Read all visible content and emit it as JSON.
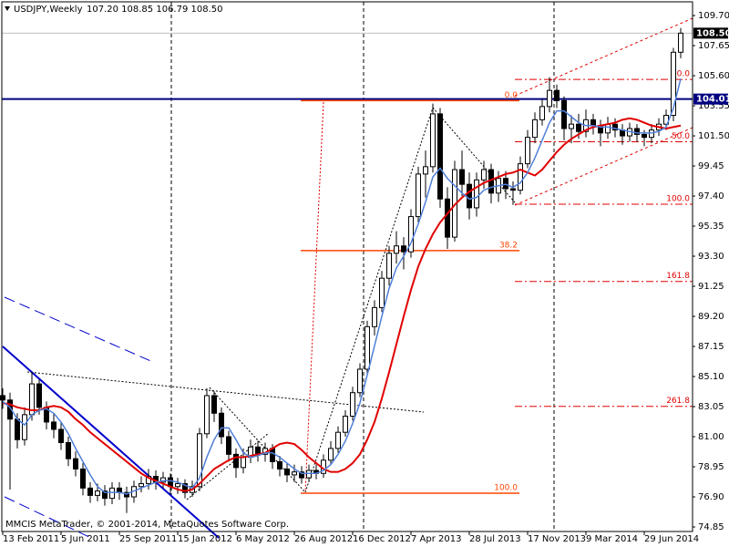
{
  "chart_data": {
    "type": "candlestick",
    "title": "USDJPY,Weekly",
    "subtitle": "107.20 108.85 106.79 108.50",
    "footer": "MMCIS MetaTrader, © 2001-2014, MetaQuotes Software Corp.",
    "categories": [
      "13 Feb 2011",
      null,
      null,
      null,
      null,
      null,
      null,
      null,
      "5 Jun 2011",
      null,
      null,
      null,
      null,
      null,
      null,
      null,
      "25 Sep 2011",
      null,
      null,
      null,
      null,
      null,
      null,
      null,
      "15 Jan 2012",
      null,
      null,
      null,
      null,
      null,
      null,
      null,
      "6 May 2012",
      null,
      null,
      null,
      null,
      null,
      null,
      null,
      "26 Aug 2012",
      null,
      null,
      null,
      null,
      null,
      null,
      null,
      "16 Dec 2012",
      null,
      null,
      null,
      null,
      null,
      null,
      null,
      "7 Apr 2013",
      null,
      null,
      null,
      null,
      null,
      null,
      null,
      "28 Jul 2013",
      null,
      null,
      null,
      null,
      null,
      null,
      null,
      "17 Nov 2013",
      null,
      null,
      null,
      null,
      null,
      null,
      null,
      "9 Mar 2014",
      null,
      null,
      null,
      null,
      null,
      null,
      null,
      "29 Jun 2014",
      null,
      null,
      null,
      null,
      null
    ],
    "open": [
      83.8,
      83.5,
      82.2,
      80.8,
      82.5,
      84.6,
      83.0,
      82.0,
      81.5,
      80.6,
      79.5,
      78.8,
      77.5,
      77.0,
      77.3,
      76.8,
      77.5,
      77.2,
      76.9,
      77.6,
      77.8,
      78.3,
      77.9,
      78.2,
      77.6,
      77.8,
      77.2,
      77.6,
      81.2,
      83.8,
      82.6,
      81.0,
      79.8,
      78.9,
      79.6,
      80.3,
      79.8,
      80.2,
      79.3,
      78.8,
      78.4,
      78.6,
      78.2,
      78.7,
      78.5,
      79.4,
      80.2,
      81.3,
      82.4,
      84.0,
      85.6,
      88.5,
      89.8,
      91.8,
      93.5,
      94.0,
      93.6,
      96.0,
      98.9,
      99.4,
      103.0,
      97.2,
      94.6,
      99.2,
      98.2,
      96.6,
      98.5,
      99.2,
      97.6,
      98.6,
      97.9,
      97.8,
      99.6,
      101.4,
      102.6,
      103.5,
      104.6,
      103.9,
      102.0,
      102.3,
      101.8,
      102.6,
      102.2,
      101.7,
      102.3,
      101.9,
      101.5,
      102.0,
      101.6,
      101.4,
      101.9,
      102.3,
      102.9,
      107.2
    ],
    "high": [
      84.3,
      84.0,
      82.6,
      83.0,
      85.4,
      84.9,
      83.4,
      82.6,
      82.0,
      81.0,
      80.0,
      79.2,
      77.9,
      77.8,
      77.7,
      77.9,
      77.9,
      77.6,
      78.0,
      78.3,
      78.8,
      78.7,
      78.6,
      78.5,
      78.2,
      78.1,
      78.0,
      81.6,
      84.3,
      84.1,
      83.0,
      81.4,
      80.2,
      80.2,
      80.8,
      80.7,
      80.6,
      80.5,
      79.7,
      79.2,
      79.1,
      79.0,
      79.1,
      79.1,
      79.8,
      80.7,
      81.7,
      82.8,
      84.4,
      86.0,
      88.9,
      90.3,
      92.3,
      94.0,
      95.0,
      94.6,
      96.5,
      99.4,
      100.5,
      103.7,
      103.4,
      98.0,
      99.8,
      100.5,
      99.0,
      99.0,
      99.8,
      99.6,
      99.1,
      99.1,
      98.4,
      100.1,
      101.9,
      103.1,
      104.0,
      105.5,
      105.0,
      104.2,
      102.9,
      103.0,
      103.3,
      103.0,
      102.6,
      102.8,
      102.7,
      102.3,
      102.4,
      102.3,
      101.9,
      102.3,
      102.7,
      103.3,
      107.5,
      108.85
    ],
    "low": [
      82.9,
      77.4,
      80.2,
      80.4,
      82.1,
      82.5,
      81.5,
      80.9,
      80.1,
      79.0,
      78.3,
      77.0,
      76.5,
      76.6,
      76.3,
      76.4,
      76.7,
      75.8,
      76.5,
      77.2,
      77.4,
      77.4,
      77.5,
      77.1,
      77.1,
      76.8,
      76.9,
      77.3,
      80.9,
      82.0,
      80.5,
      79.3,
      78.2,
      78.5,
      79.2,
      79.3,
      79.3,
      78.8,
      78.3,
      77.9,
      77.9,
      77.8,
      77.9,
      78.1,
      78.2,
      79.1,
      79.9,
      81.0,
      82.1,
      83.7,
      85.3,
      87.9,
      89.5,
      91.3,
      92.8,
      92.4,
      93.2,
      95.6,
      97.3,
      99.0,
      96.6,
      93.8,
      94.3,
      97.4,
      95.8,
      96.0,
      97.9,
      96.9,
      97.0,
      97.2,
      96.8,
      97.5,
      99.3,
      101.0,
      102.2,
      103.1,
      103.4,
      101.2,
      101.0,
      101.3,
      101.4,
      101.6,
      100.8,
      101.3,
      101.4,
      100.9,
      101.1,
      101.1,
      100.8,
      101.0,
      101.5,
      101.9,
      102.5,
      106.79
    ],
    "close": [
      83.5,
      82.2,
      80.8,
      82.5,
      84.6,
      83.0,
      82.0,
      81.5,
      80.6,
      79.5,
      78.8,
      77.5,
      77.0,
      77.3,
      76.8,
      77.5,
      77.2,
      76.9,
      77.6,
      77.8,
      78.3,
      77.9,
      78.2,
      77.6,
      77.8,
      77.2,
      77.6,
      81.2,
      83.8,
      82.6,
      81.0,
      79.8,
      78.9,
      79.6,
      80.3,
      79.8,
      80.2,
      79.3,
      78.8,
      78.4,
      78.6,
      78.2,
      78.7,
      78.5,
      79.4,
      80.2,
      81.3,
      82.4,
      84.0,
      85.6,
      88.5,
      89.8,
      91.8,
      93.5,
      94.0,
      93.6,
      96.0,
      98.9,
      99.4,
      103.0,
      97.2,
      94.6,
      99.2,
      98.2,
      96.6,
      98.5,
      99.2,
      97.6,
      98.6,
      97.9,
      97.8,
      99.6,
      101.4,
      102.6,
      103.5,
      104.6,
      103.9,
      102.0,
      102.3,
      101.8,
      102.6,
      102.2,
      101.7,
      102.3,
      101.9,
      101.5,
      102.0,
      101.6,
      101.4,
      101.9,
      102.3,
      102.9,
      107.2,
      108.5
    ],
    "series": [
      {
        "color": "#e00000",
        "values": [
          83.3,
          83.2,
          83.0,
          82.9,
          82.8,
          82.8,
          83.0,
          83.1,
          83.0,
          82.7,
          82.2,
          81.8,
          81.3,
          80.9,
          80.5,
          80.1,
          79.7,
          79.3,
          78.9,
          78.5,
          78.2,
          78.0,
          77.8,
          77.6,
          77.4,
          77.3,
          77.4,
          77.8,
          78.3,
          78.8,
          79.1,
          79.4,
          79.6,
          79.6,
          79.7,
          79.8,
          79.9,
          80.2,
          80.5,
          80.6,
          80.5,
          80.1,
          79.6,
          79.2,
          78.8,
          78.6,
          78.6,
          78.8,
          79.2,
          79.8,
          80.8,
          82.0,
          83.6,
          85.4,
          87.3,
          89.2,
          91.0,
          92.6,
          93.8,
          94.8,
          95.6,
          96.2,
          96.8,
          97.3,
          97.7,
          98.0,
          98.3,
          98.5,
          98.7,
          98.9,
          99.0,
          99.2,
          99.0,
          98.8,
          99.2,
          99.8,
          100.4,
          100.9,
          101.3,
          101.6,
          101.9,
          102.1,
          102.2,
          102.3,
          102.4,
          102.6,
          102.7,
          102.6,
          102.4,
          102.2,
          102.1,
          102.0,
          102.1,
          102.2
        ]
      },
      {
        "color": "#4f7fd8",
        "values": [
          83.4,
          83.0,
          82.2,
          81.8,
          82.5,
          82.8,
          82.9,
          82.6,
          82.0,
          81.2,
          80.2,
          79.3,
          78.4,
          77.6,
          77.2,
          77.2,
          77.2,
          77.1,
          77.3,
          77.5,
          77.7,
          77.9,
          78.0,
          78.0,
          77.9,
          77.7,
          77.5,
          78.2,
          79.6,
          80.8,
          81.6,
          81.6,
          80.8,
          79.9,
          79.6,
          79.7,
          79.9,
          79.9,
          79.6,
          79.2,
          78.8,
          78.5,
          78.5,
          78.5,
          78.7,
          79.1,
          79.8,
          80.7,
          81.9,
          83.3,
          85.2,
          87.2,
          89.2,
          91.1,
          92.5,
          93.3,
          94.2,
          95.5,
          97.0,
          98.7,
          99.3,
          98.6,
          98.1,
          97.6,
          97.2,
          97.3,
          97.8,
          98.0,
          98.1,
          98.2,
          98.0,
          98.3,
          99.0,
          100.0,
          101.2,
          102.4,
          103.2,
          103.2,
          102.8,
          102.4,
          102.2,
          102.2,
          102.1,
          102.1,
          102.0,
          101.9,
          101.8,
          101.7,
          101.7,
          101.7,
          101.8,
          102.1,
          103.4,
          105.4
        ]
      }
    ],
    "ylim": [
      74.54,
      110.76
    ],
    "yticks": [
      {
        "value": 109.7,
        "label": "109.70"
      },
      {
        "value": 107.65,
        "label": "107.65"
      },
      {
        "value": 105.6,
        "label": "105.60"
      },
      {
        "value": 103.55,
        "label": "103.55"
      },
      {
        "value": 101.5,
        "label": "101.50"
      },
      {
        "value": 99.45,
        "label": "99.45"
      },
      {
        "value": 97.4,
        "label": "97.40"
      },
      {
        "value": 95.35,
        "label": "95.35"
      },
      {
        "value": 93.3,
        "label": "93.30"
      },
      {
        "value": 91.25,
        "label": "91.25"
      },
      {
        "value": 89.2,
        "label": "89.20"
      },
      {
        "value": 87.15,
        "label": "87.15"
      },
      {
        "value": 85.1,
        "label": "85.10"
      },
      {
        "value": 83.05,
        "label": "83.05"
      },
      {
        "value": 81,
        "label": "81.00"
      },
      {
        "value": 78.95,
        "label": "78.95"
      },
      {
        "value": 76.9,
        "label": "76.90"
      },
      {
        "value": 74.85,
        "label": "74.85"
      }
    ],
    "current_price": {
      "value": 108.5,
      "label": "108.50"
    },
    "level": {
      "value": 104.01,
      "label": "104.01",
      "color": "#000080"
    },
    "fibo_left": {
      "color": "#ff4500",
      "levels": [
        {
          "label": "0.0",
          "price": 103.9
        },
        {
          "label": "38.2",
          "price": 93.68
        },
        {
          "label": "100.0",
          "price": 77.15
        }
      ]
    },
    "fibo_right": {
      "color": "#e00000",
      "levels": [
        {
          "label": "0.0",
          "price": 105.35
        },
        {
          "label": "50.0",
          "price": 101.1
        },
        {
          "label": "100.0",
          "price": 96.84
        },
        {
          "label": "161.8",
          "price": 91.58
        },
        {
          "label": "261.8",
          "price": 83.07
        }
      ]
    }
  }
}
